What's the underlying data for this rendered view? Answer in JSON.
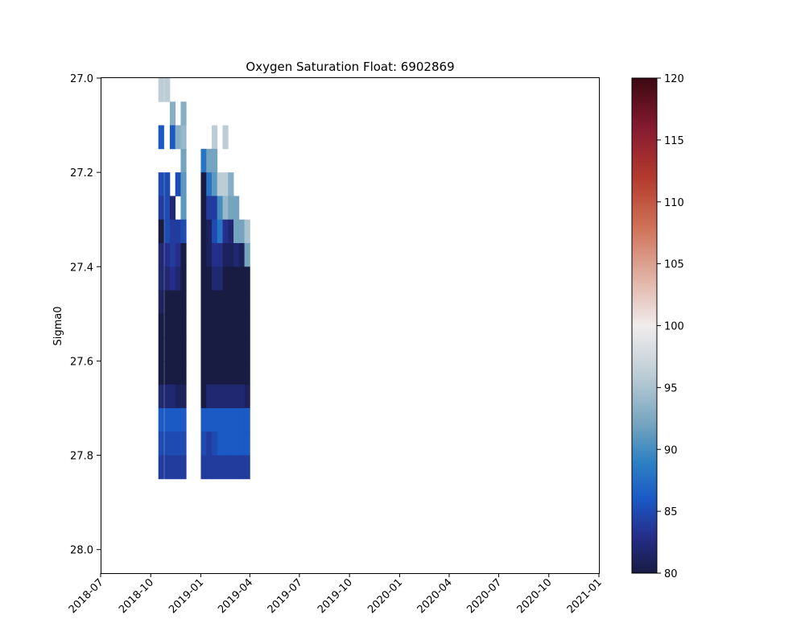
{
  "chart_data": {
    "type": "heatmap",
    "title": "Oxygen Saturation Float: 6902869",
    "xlabel": "",
    "ylabel": "Sigma0",
    "x_ticks": [
      "2018-07",
      "2018-10",
      "2019-01",
      "2019-04",
      "2019-07",
      "2019-10",
      "2020-01",
      "2020-04",
      "2020-07",
      "2020-10",
      "2021-01"
    ],
    "y_ticks": [
      "27.0",
      "27.2",
      "27.4",
      "27.6",
      "27.8",
      "28.0"
    ],
    "xlim": [
      "2018-07-01",
      "2021-01-01"
    ],
    "ylim": [
      28.05,
      27.0
    ],
    "y_inverted": true,
    "colorbar": {
      "vmin": 80,
      "vmax": 120,
      "ticks": [
        "80",
        "85",
        "90",
        "95",
        "100",
        "105",
        "110",
        "115",
        "120"
      ],
      "colormap": "balance",
      "color_stops": [
        {
          "v": 80,
          "c": "#181c43"
        },
        {
          "v": 83,
          "c": "#252e8a"
        },
        {
          "v": 86,
          "c": "#1b59c5"
        },
        {
          "v": 89,
          "c": "#2d81c3"
        },
        {
          "v": 92,
          "c": "#74a4be"
        },
        {
          "v": 96,
          "c": "#bccdd6"
        },
        {
          "v": 100,
          "c": "#f1ecec"
        },
        {
          "v": 104,
          "c": "#e0afa1"
        },
        {
          "v": 108,
          "c": "#cf7156"
        },
        {
          "v": 112,
          "c": "#b33a2d"
        },
        {
          "v": 116,
          "c": "#851a30"
        },
        {
          "v": 120,
          "c": "#3c0911"
        }
      ]
    },
    "profile_dates": [
      "2018-10-15",
      "2018-10-26",
      "2018-11-05",
      "2018-11-15",
      "2018-11-25",
      "2019-01-01",
      "2019-01-11",
      "2019-01-21",
      "2019-01-31",
      "2019-02-10",
      "2019-02-20",
      "2019-03-02",
      "2019-03-12",
      "2019-03-22"
    ],
    "sigma_bins": [
      27.0,
      27.05,
      27.1,
      27.15,
      27.2,
      27.25,
      27.3,
      27.35,
      27.4,
      27.45,
      27.5,
      27.55,
      27.6,
      27.65,
      27.7,
      27.75,
      27.8,
      27.85
    ],
    "values": [
      [
        96,
        96,
        null,
        null,
        null,
        null,
        null,
        null,
        null,
        null,
        null,
        null,
        null,
        null
      ],
      [
        null,
        null,
        93,
        null,
        93,
        null,
        null,
        null,
        null,
        null,
        null,
        null,
        null,
        null
      ],
      [
        86,
        null,
        86,
        93,
        94,
        null,
        null,
        96,
        null,
        96,
        null,
        null,
        null,
        null
      ],
      [
        null,
        null,
        null,
        null,
        92,
        88,
        92,
        92,
        null,
        null,
        null,
        null,
        null,
        null
      ],
      [
        85,
        85,
        null,
        85,
        91,
        80,
        88,
        91,
        96,
        96,
        93,
        null,
        null,
        null
      ],
      [
        84,
        85,
        82,
        null,
        91,
        80,
        84,
        84,
        90,
        94,
        92,
        92,
        null,
        null
      ],
      [
        80,
        85,
        84,
        84,
        85,
        80,
        81,
        85,
        88,
        83,
        82,
        92,
        92,
        95
      ],
      [
        82,
        83,
        84,
        83,
        80,
        80,
        81,
        83,
        83,
        81,
        81,
        82,
        81,
        92
      ],
      [
        82,
        82,
        83,
        82,
        80,
        80,
        80,
        82,
        82,
        80,
        80,
        80,
        80,
        80
      ],
      [
        81,
        80,
        80,
        80,
        80,
        80,
        80,
        80,
        80,
        80,
        80,
        80,
        80,
        80
      ],
      [
        80,
        80,
        80,
        80,
        80,
        80,
        80,
        80,
        80,
        80,
        80,
        80,
        80,
        80
      ],
      [
        80,
        80,
        80,
        80,
        80,
        80,
        80,
        80,
        80,
        80,
        80,
        80,
        80,
        80
      ],
      [
        80,
        80,
        80,
        80,
        80,
        80,
        80,
        80,
        80,
        80,
        80,
        80,
        80,
        80
      ],
      [
        82,
        82,
        82,
        81,
        81,
        80,
        82,
        82,
        82,
        82,
        82,
        82,
        82,
        81
      ],
      [
        86,
        86,
        86,
        86,
        86,
        86,
        86,
        86,
        86,
        86,
        86,
        86,
        86,
        86
      ],
      [
        85,
        85,
        85,
        85,
        85,
        85,
        84,
        85,
        86,
        86,
        86,
        86,
        86,
        86
      ],
      [
        84,
        84,
        84,
        84,
        84,
        84,
        84,
        84,
        84,
        84,
        84,
        84,
        84,
        84
      ]
    ]
  }
}
